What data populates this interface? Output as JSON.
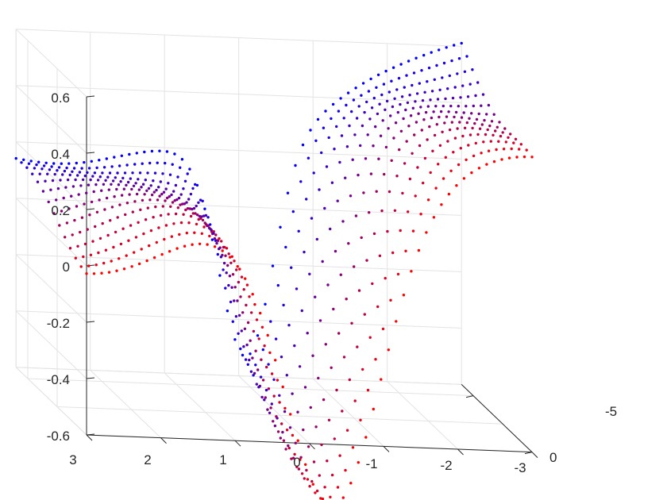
{
  "chart_data": {
    "type": "scatter3d",
    "title": "",
    "xlabel": "",
    "ylabel": "",
    "zlabel": "",
    "grid": true,
    "box": "back-planes",
    "x_ticks": [
      "3",
      "2",
      "1",
      "0",
      "-1",
      "-2",
      "-3"
    ],
    "y_ticks": [
      "0",
      "-5"
    ],
    "z_ticks": [
      "0.6",
      "0.4",
      "0.2",
      "0",
      "-0.2",
      "-0.4",
      "-0.6"
    ],
    "xlim": [
      3,
      -3
    ],
    "ylim": [
      0,
      -6
    ],
    "zlim": [
      -0.6,
      0.6
    ],
    "colormap": {
      "start": "#ff0000",
      "end": "#0000ff",
      "variable": "y"
    },
    "surface": {
      "description_of_values": "z = f(x, y) sampled on a grid; y from 0 (red) to -6 (blue)",
      "x_range": [
        -3,
        3
      ],
      "y_range": [
        -6,
        0
      ],
      "rows": 14,
      "cols": 60
    }
  },
  "colors": {
    "axis": "#262626",
    "grid": "#e3e3e3",
    "low": "#ff0000",
    "high": "#0000ff"
  }
}
